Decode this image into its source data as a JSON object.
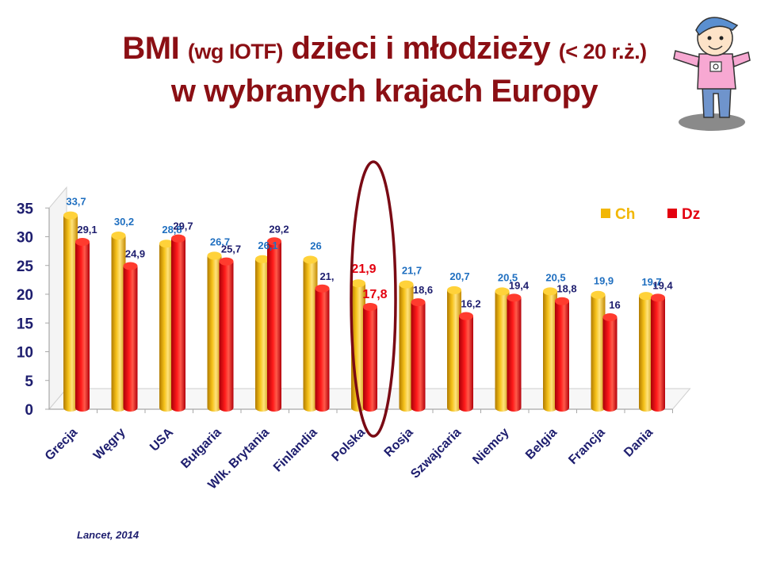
{
  "title": {
    "part1": "BMI",
    "part2": "(wg IOTF)",
    "part3": "dzieci i młodzieży",
    "part4": "(< 20 r.ż.)",
    "line2": "w wybranych krajach Europy"
  },
  "source": "Lancet, 2014",
  "colors": {
    "boys": "#f2b705",
    "girls": "#e3000f",
    "title": "#8b0f14",
    "axis_text": "#1d1d6e",
    "boys_label": "#1f6fc0",
    "highlight": "#7a0a14"
  },
  "chart_data": {
    "type": "bar",
    "categories": [
      "Grecja",
      "Węgry",
      "USA",
      "Bułgaria",
      "Wlk. Brytania",
      "Finlandia",
      "Polska",
      "Rosja",
      "Szwajcaria",
      "Niemcy",
      "Belgia",
      "Francja",
      "Dania"
    ],
    "series": [
      {
        "name": "Ch",
        "color": "#f2b705",
        "values": [
          33.7,
          30.2,
          28.8,
          26.7,
          26.1,
          26,
          21.9,
          21.7,
          20.7,
          20.5,
          20.5,
          19.9,
          19.7
        ],
        "labels": [
          "33,7",
          "30,2",
          "28,8",
          "26,7",
          "26,1",
          "26",
          "21,9",
          "21,7",
          "20,7",
          "20,5",
          "20,5",
          "19,9",
          "19,7"
        ]
      },
      {
        "name": "Dz",
        "color": "#e3000f",
        "values": [
          29.1,
          24.9,
          29.7,
          25.7,
          29.2,
          21,
          17.8,
          18.6,
          16.2,
          19.4,
          18.8,
          16,
          19.4
        ],
        "labels": [
          "29,1",
          "24,9",
          "29,7",
          "25,7",
          "29,2",
          "21,",
          "17,8",
          "18,6",
          "16,2",
          "19,4",
          "18,8",
          "16",
          "19,4"
        ]
      }
    ],
    "yticks": [
      "0",
      "5",
      "10",
      "15",
      "20",
      "25",
      "30",
      "35"
    ],
    "ylim": [
      0,
      35
    ],
    "highlight_category": "Polska",
    "legend_position": "top-right",
    "grid": false
  }
}
